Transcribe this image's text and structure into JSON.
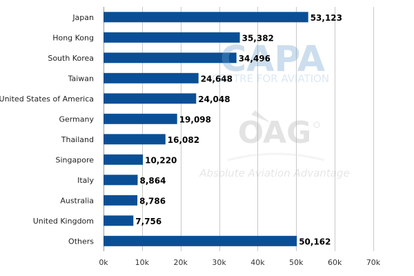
{
  "chart_data": {
    "type": "bar",
    "orientation": "horizontal",
    "title": "",
    "xlabel": "",
    "ylabel": "",
    "categories": [
      "Japan",
      "Hong Kong",
      "South Korea",
      "Taiwan",
      "United States of America",
      "Germany",
      "Thailand",
      "Singapore",
      "Italy",
      "Australia",
      "United Kingdom",
      "Others"
    ],
    "values": [
      53123,
      35382,
      34496,
      24648,
      24048,
      19098,
      16082,
      10220,
      8864,
      8786,
      7756,
      50162
    ],
    "data_labels": [
      "53,123",
      "35,382",
      "34,496",
      "24,648",
      "24,048",
      "19,098",
      "16,082",
      "10,220",
      "8,864",
      "8,786",
      "7,756",
      "50,162"
    ],
    "xlim": [
      0,
      70000
    ],
    "x_ticks": [
      0,
      10000,
      20000,
      30000,
      40000,
      50000,
      60000,
      70000
    ],
    "x_tick_labels": [
      "0k",
      "10k",
      "20k",
      "30k",
      "40k",
      "50k",
      "60k",
      "70k"
    ],
    "grid": "vertical",
    "legend": "none",
    "bar_color": "#0a4f96",
    "grid_color": "#c8c8c8"
  },
  "watermark": {
    "capa_logo": "CAPA",
    "capa_tagline": "CENTRE FOR AVIATION",
    "oag_logo": "OAG",
    "oag_tagline": "Absolute Aviation Advantage"
  }
}
